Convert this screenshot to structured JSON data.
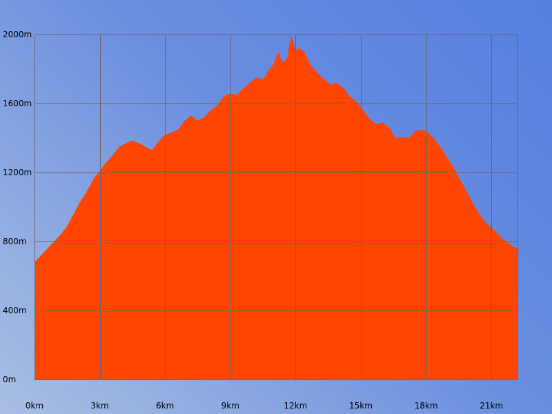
{
  "chart_data": {
    "type": "area",
    "title": "",
    "xlabel": "",
    "ylabel": "",
    "x_unit": "km",
    "y_unit": "m",
    "xlim": [
      0,
      22.2
    ],
    "ylim": [
      0,
      2000
    ],
    "grid": true,
    "x_ticks": [
      "0km",
      "3km",
      "6km",
      "9km",
      "12km",
      "15km",
      "18km",
      "21km"
    ],
    "x_tick_values": [
      0,
      3,
      6,
      9,
      12,
      15,
      18,
      21
    ],
    "y_ticks": [
      "0m",
      "400m",
      "800m",
      "1200m",
      "1600m",
      "2000m"
    ],
    "y_tick_values": [
      0,
      400,
      800,
      1200,
      1600,
      2000
    ],
    "colors": {
      "fill": "#ff4500",
      "grid": "#666666"
    },
    "series": [
      {
        "x": [
          0,
          0.3,
          0.6,
          0.9,
          1.2,
          1.5,
          1.8,
          2.1,
          2.4,
          2.7,
          3.0,
          3.3,
          3.6,
          3.9,
          4.2,
          4.5,
          4.8,
          5.1,
          5.4,
          5.7,
          6.0,
          6.3,
          6.6,
          6.9,
          7.2,
          7.5,
          7.8,
          8.1,
          8.4,
          8.7,
          9.0,
          9.3,
          9.6,
          9.9,
          10.2,
          10.5,
          10.8,
          11.0,
          11.2,
          11.4,
          11.6,
          11.8,
          12.0,
          12.2,
          12.4,
          12.7,
          13.0,
          13.3,
          13.6,
          13.9,
          14.2,
          14.5,
          14.8,
          15.1,
          15.4,
          15.7,
          16.0,
          16.3,
          16.6,
          16.9,
          17.2,
          17.5,
          17.8,
          18.1,
          18.4,
          18.7,
          19.0,
          19.3,
          19.6,
          19.9,
          20.2,
          20.5,
          20.8,
          21.1,
          21.4,
          21.7,
          22.0,
          22.2
        ],
        "y": [
          680,
          720,
          760,
          800,
          840,
          890,
          960,
          1030,
          1090,
          1160,
          1210,
          1260,
          1300,
          1350,
          1370,
          1385,
          1370,
          1350,
          1330,
          1380,
          1420,
          1430,
          1450,
          1500,
          1530,
          1500,
          1520,
          1560,
          1590,
          1640,
          1660,
          1650,
          1690,
          1720,
          1750,
          1740,
          1800,
          1830,
          1900,
          1840,
          1860,
          1995,
          1910,
          1920,
          1900,
          1820,
          1780,
          1740,
          1710,
          1720,
          1690,
          1640,
          1610,
          1560,
          1510,
          1480,
          1490,
          1460,
          1400,
          1405,
          1400,
          1440,
          1450,
          1430,
          1390,
          1340,
          1280,
          1220,
          1150,
          1080,
          1010,
          950,
          900,
          870,
          830,
          800,
          770,
          760
        ]
      }
    ]
  }
}
